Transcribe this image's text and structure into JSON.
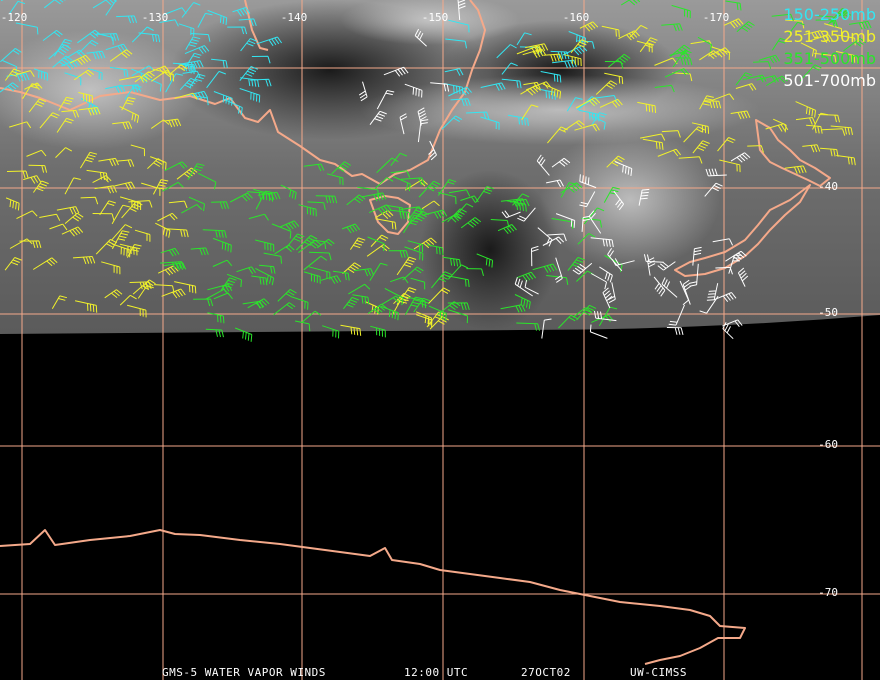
{
  "map": {
    "longitude_labels": [
      "-120",
      "-130",
      "-140",
      "-150",
      "-160",
      "-170"
    ],
    "latitude_labels": [
      "-40",
      "-50",
      "-60",
      "-70"
    ],
    "legend": [
      {
        "label": "150-250mb",
        "color": "#33e6f2"
      },
      {
        "label": "251-350mb",
        "color": "#f2f22a"
      },
      {
        "label": "351-500mb",
        "color": "#2ae62a"
      },
      {
        "label": "501-700mb",
        "color": "#ffffff"
      }
    ],
    "footer": [
      "GMS-5 WATER VAPOR WINDS",
      "12:00 UTC",
      "27OCT02",
      "UW-CIMSS"
    ]
  }
}
